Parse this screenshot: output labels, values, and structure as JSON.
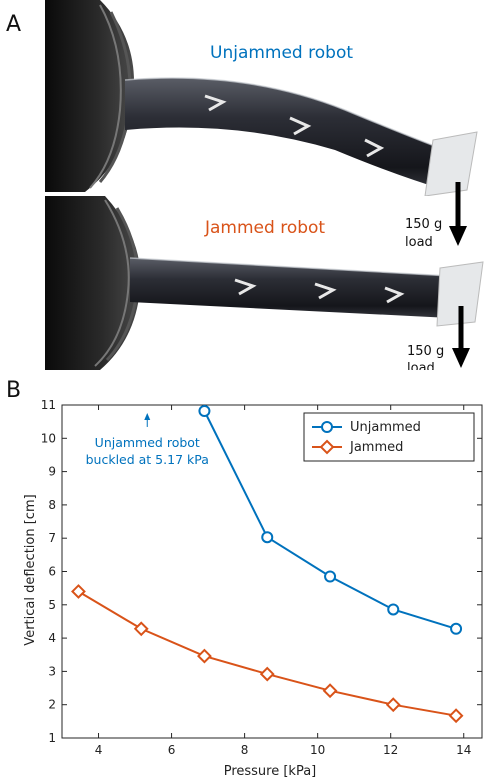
{
  "panel_a": {
    "letter": "A",
    "unjammed_label": "Unjammed robot",
    "jammed_label": "Jammed robot",
    "load_label_line1": "150 g",
    "load_label_line2": "load",
    "colors": {
      "unjammed": "#0072BD",
      "jammed": "#D95319"
    }
  },
  "panel_b": {
    "letter": "B"
  },
  "chart_data": {
    "type": "line",
    "xlabel": "Pressure [kPa]",
    "ylabel": "Vertical deflection [cm]",
    "xlim": [
      3,
      14.5
    ],
    "ylim": [
      1,
      11
    ],
    "xticks": [
      4,
      6,
      8,
      10,
      12,
      14
    ],
    "yticks": [
      1,
      2,
      3,
      4,
      5,
      6,
      7,
      8,
      9,
      10,
      11
    ],
    "grid": false,
    "legend_position": "top-right",
    "annotation": {
      "line1": "Unjammed robot",
      "line2": "buckled at 5.17 kPa",
      "x": 5.17,
      "y": 9.8,
      "color": "#0072BD"
    },
    "series": [
      {
        "name": "Unjammed",
        "marker": "circle",
        "color": "#0072BD",
        "x": [
          6.9,
          8.62,
          10.34,
          12.07,
          13.79
        ],
        "y": [
          10.82,
          7.03,
          5.85,
          4.86,
          4.28
        ]
      },
      {
        "name": "Jammed",
        "marker": "diamond",
        "color": "#D95319",
        "x": [
          3.45,
          5.17,
          6.9,
          8.62,
          10.34,
          12.07,
          13.79
        ],
        "y": [
          5.4,
          4.28,
          3.46,
          2.92,
          2.42,
          2.0,
          1.67
        ]
      }
    ]
  }
}
